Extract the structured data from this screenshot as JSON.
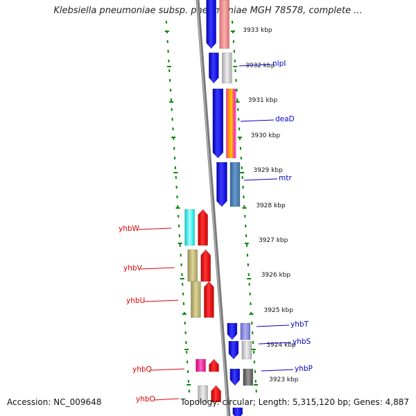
{
  "title": "Klebsiella pneumoniae subsp. pneumoniae MGH 78578, complete ...",
  "footer": {
    "accession": "Accession: NC_009648",
    "summary": "Topology: circular; Length: 5,315,120 bp; Genes: 4,887"
  },
  "colors": {
    "plus_strand_label": "#0000cc",
    "minus_strand_label": "#dd0000",
    "backbone": "#888888",
    "tick": "#008800"
  },
  "kbp_ticks": [
    {
      "label": "3933 kbp",
      "kbp": 3933
    },
    {
      "label": "3932 kbp",
      "kbp": 3932
    },
    {
      "label": "3931 kbp",
      "kbp": 3931
    },
    {
      "label": "3930 kbp",
      "kbp": 3930
    },
    {
      "label": "3929 kbp",
      "kbp": 3929
    },
    {
      "label": "3928 kbp",
      "kbp": 3928
    },
    {
      "label": "3927 kbp",
      "kbp": 3927
    },
    {
      "label": "3926 kbp",
      "kbp": 3926
    },
    {
      "label": "3925 kbp",
      "kbp": 3925
    },
    {
      "label": "3924 kbp",
      "kbp": 3924
    },
    {
      "label": "3923 kbp",
      "kbp": 3923
    }
  ],
  "genes": [
    {
      "name": "nlpI",
      "strand": "plus"
    },
    {
      "name": "deaD",
      "strand": "plus"
    },
    {
      "name": "mtr",
      "strand": "plus"
    },
    {
      "name": "yhbW",
      "strand": "minus"
    },
    {
      "name": "yhbV",
      "strand": "minus"
    },
    {
      "name": "yhbU",
      "strand": "minus"
    },
    {
      "name": "yhbT",
      "strand": "plus"
    },
    {
      "name": "yhbS",
      "strand": "plus"
    },
    {
      "name": "yhbP",
      "strand": "plus"
    },
    {
      "name": "yhbQ",
      "strand": "minus"
    },
    {
      "name": "yhbO",
      "strand": "minus"
    }
  ]
}
